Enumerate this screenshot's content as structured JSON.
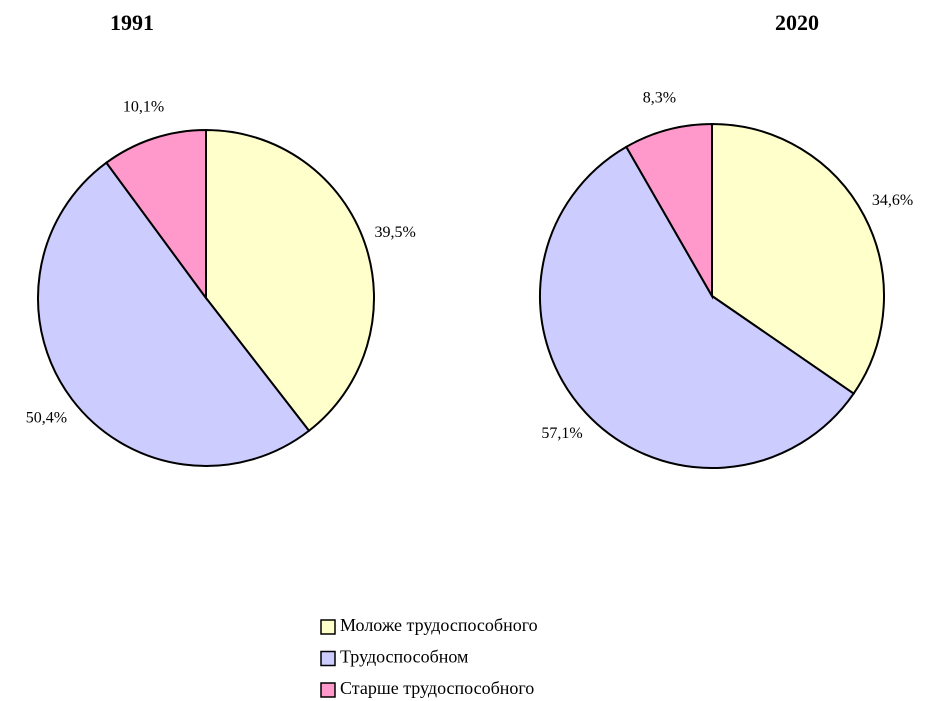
{
  "chart_data": [
    {
      "type": "pie",
      "title": "1991",
      "categories": [
        "Моложе трудоспособного",
        "Трудоспособном",
        "Старше трудоспособного"
      ],
      "values": [
        39.5,
        50.4,
        10.1
      ],
      "value_labels": [
        "39,5%",
        "50,4%",
        "10,1%"
      ],
      "colors": [
        "#ffffcc",
        "#ccccff",
        "#ff99cc"
      ]
    },
    {
      "type": "pie",
      "title": "2020",
      "categories": [
        "Моложе трудоспособного",
        "Трудоспособном",
        "Старше трудоспособного"
      ],
      "values": [
        34.6,
        57.1,
        8.3
      ],
      "value_labels": [
        "34,6%",
        "57,1%",
        "8,3%"
      ],
      "colors": [
        "#ffffcc",
        "#ccccff",
        "#ff99cc"
      ]
    }
  ]
}
